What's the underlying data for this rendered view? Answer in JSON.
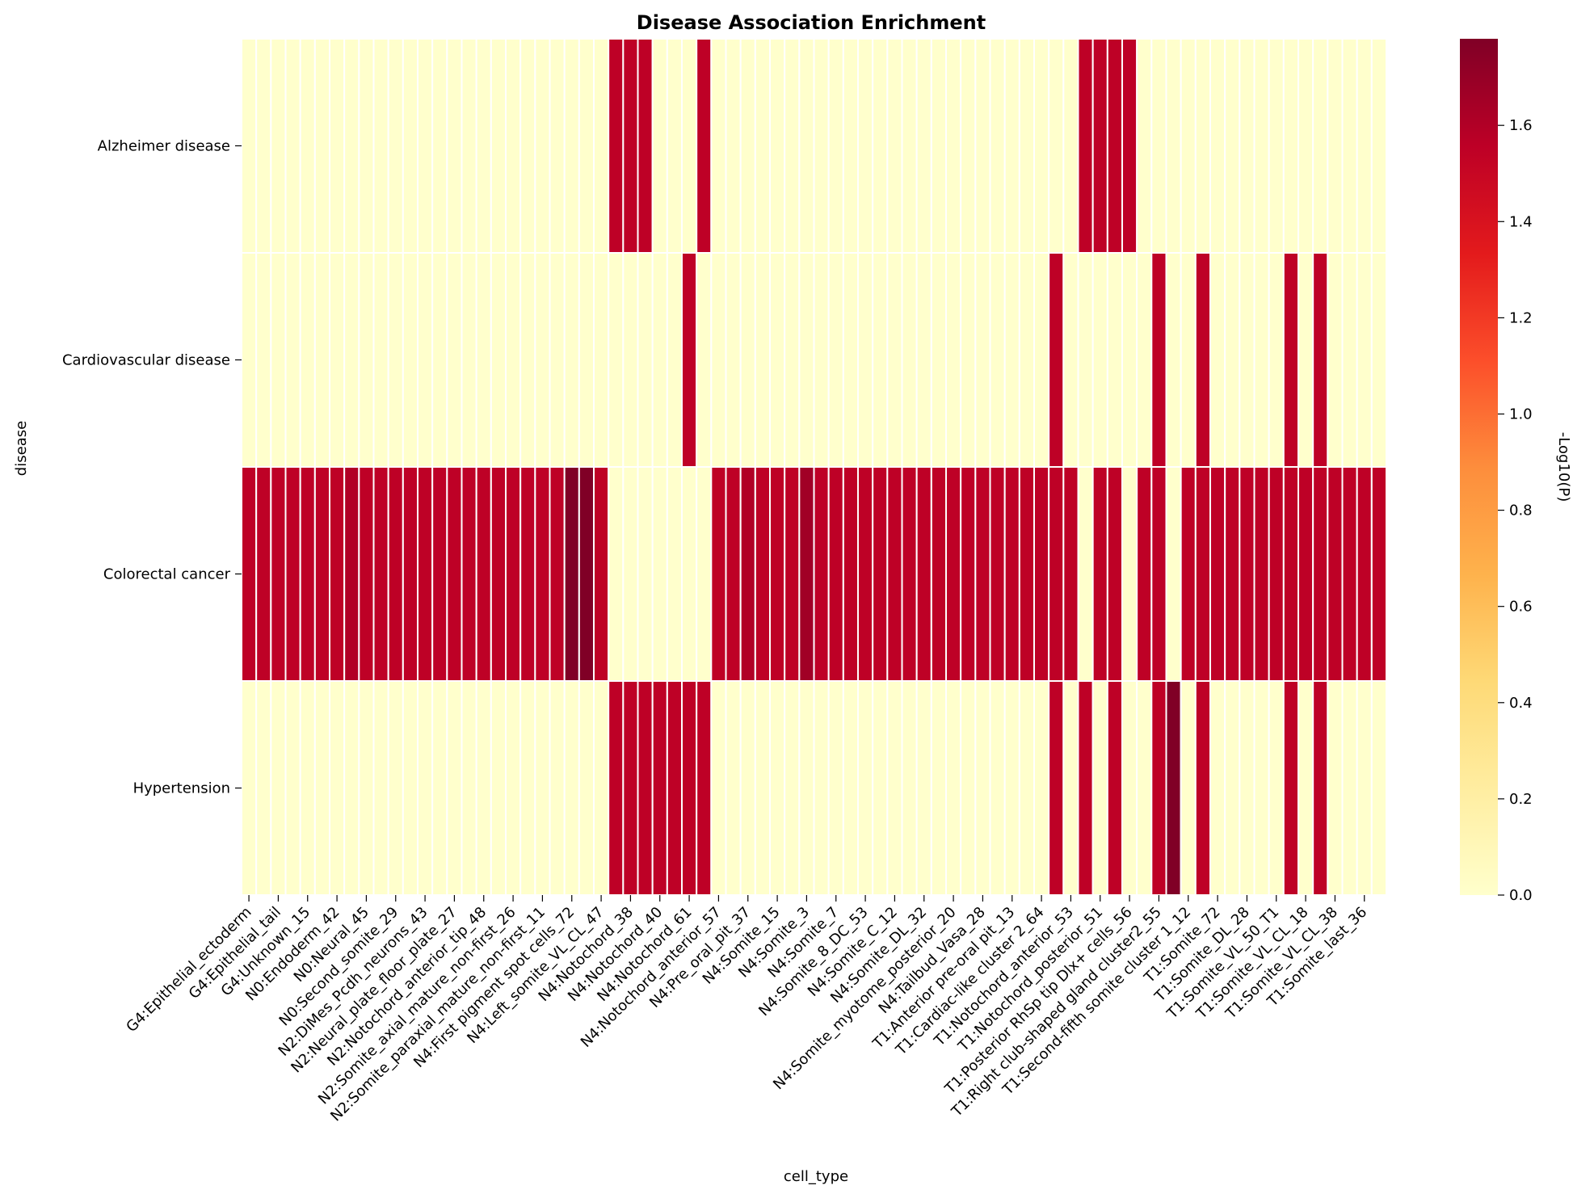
{
  "chart_data": {
    "type": "heatmap",
    "title": "Disease Association Enrichment",
    "xlabel": "cell_type",
    "ylabel": "disease",
    "colorbar_label": "-Log10(P)",
    "colormap": "YlOrRd",
    "colorbar_range": [
      0,
      1.78
    ],
    "colorbar_ticks": [
      0.0,
      0.2,
      0.4,
      0.6,
      0.8,
      1.0,
      1.2,
      1.4,
      1.6
    ],
    "colorbar_tick_labels": [
      "0.0",
      "0.2",
      "0.4",
      "0.6",
      "0.8",
      "1.0",
      "1.2",
      "1.4",
      "1.6"
    ],
    "rows": [
      "Alzheimer disease",
      "Cardiovascular disease",
      "Colorectal cancer",
      "Hypertension"
    ],
    "n_columns": 78,
    "x_tick_labels": [
      "G4:Epithelial_ectoderm",
      "G4:Epithelial_tail",
      "G4:Unknown_15",
      "N0:Endoderm_42",
      "N0:Neural_45",
      "N0:Second_somite_29",
      "N2:DiMes_Pcdh_neurons_43",
      "N2:Neural_plate_floor_plate_27",
      "N2:Notochord_anterior_tip_48",
      "N2:Somite_axial_mature_non-first_26",
      "N2:Somite_paraxial_mature_non-first_11",
      "N4:First pigment spot cells_72",
      "N4:Left_somite_VL_CL_47",
      "N4:Notochord_38",
      "N4:Notochord_40",
      "N4:Notochord_61",
      "N4:Notochord_anterior_57",
      "N4:Pre_oral_pit_37",
      "N4:Somite_15",
      "N4:Somite_3",
      "N4:Somite_7",
      "N4:Somite_8_DC_53",
      "N4:Somite_C_12",
      "N4:Somite_DL_32",
      "N4:Somite_myotome_posterior_20",
      "N4:Tailbud_Vasa_28",
      "T1:Anterior pre-oral pit_13",
      "T1:Cardiac-like cluster 2_64",
      "T1:Notochord_anterior_53",
      "T1:Notochord_posterior_51",
      "T1:Posterior RhSp tip Dlx+ cells_56",
      "T1:Right club-shaped gland cluster2_55",
      "T1:Second-fifth somite cluster 1_12",
      "T1:Somite_72",
      "T1:Somite_DL_28",
      "T1:Somite_VL_50_T1",
      "T1:Somite_VL_CL_18",
      "T1:Somite_VL_CL_38",
      "T1:Somite_last_36"
    ],
    "values": [
      [
        0,
        0,
        0,
        0,
        0,
        0,
        0,
        0,
        0,
        0,
        0,
        0,
        0,
        0,
        0,
        0,
        0,
        0,
        0,
        0,
        0,
        0,
        0,
        0,
        0,
        1.55,
        1.55,
        1.55,
        0,
        0,
        0,
        1.55,
        0,
        0,
        0,
        0,
        0,
        0,
        0,
        0,
        0,
        0,
        0,
        0,
        0,
        0,
        0,
        0,
        0,
        0,
        0,
        0,
        0,
        0,
        0,
        0,
        0,
        1.55,
        1.55,
        1.55,
        1.55,
        0,
        0,
        0,
        0,
        0,
        0,
        0,
        0,
        0,
        0,
        0,
        0,
        0,
        0,
        0,
        0,
        0
      ],
      [
        0,
        0,
        0,
        0,
        0,
        0,
        0,
        0,
        0,
        0,
        0,
        0,
        0,
        0,
        0,
        0,
        0,
        0,
        0,
        0,
        0,
        0,
        0,
        0,
        0,
        0,
        0,
        0,
        0,
        0,
        1.55,
        0,
        0,
        0,
        0,
        0,
        0,
        0,
        0,
        0,
        0,
        0,
        0,
        0,
        0,
        0,
        0,
        0,
        0,
        0,
        0,
        0,
        0,
        0,
        0,
        1.55,
        0,
        0,
        0,
        0,
        0,
        0,
        1.55,
        0,
        0,
        1.55,
        0,
        0,
        0,
        0,
        0,
        1.55,
        0,
        1.55,
        0,
        0,
        0,
        0
      ],
      [
        1.55,
        1.55,
        1.55,
        1.55,
        1.55,
        1.55,
        1.55,
        1.6,
        1.55,
        1.55,
        1.55,
        1.55,
        1.55,
        1.55,
        1.55,
        1.55,
        1.55,
        1.55,
        1.55,
        1.55,
        1.55,
        1.55,
        1.78,
        1.78,
        1.55,
        0,
        0,
        0,
        0,
        0,
        0,
        0,
        1.55,
        1.55,
        1.6,
        1.55,
        1.55,
        1.55,
        1.66,
        1.55,
        1.55,
        1.55,
        1.55,
        1.55,
        1.55,
        1.55,
        1.55,
        1.55,
        1.55,
        1.55,
        1.55,
        1.55,
        1.55,
        1.55,
        1.55,
        1.55,
        1.55,
        0,
        1.55,
        1.55,
        0,
        1.55,
        1.55,
        0,
        1.55,
        1.55,
        1.55,
        1.55,
        1.55,
        1.55,
        1.55,
        1.55,
        1.55,
        1.55,
        1.55,
        1.55,
        1.55,
        1.55
      ],
      [
        0,
        0,
        0,
        0,
        0,
        0,
        0,
        0,
        0,
        0,
        0,
        0,
        0,
        0,
        0,
        0,
        0,
        0,
        0,
        0,
        0,
        0,
        0,
        0,
        0,
        1.55,
        1.55,
        1.55,
        1.55,
        1.55,
        1.55,
        1.55,
        0,
        0,
        0,
        0,
        0,
        0,
        0,
        0,
        0,
        0,
        0,
        0,
        0,
        0,
        0,
        0,
        0,
        0,
        0,
        0,
        0,
        0,
        0,
        1.55,
        0,
        1.55,
        0,
        1.55,
        0,
        0,
        1.55,
        1.78,
        0,
        1.55,
        0,
        0,
        0,
        0,
        0,
        1.55,
        0,
        1.55,
        0,
        0,
        0,
        0
      ]
    ]
  }
}
